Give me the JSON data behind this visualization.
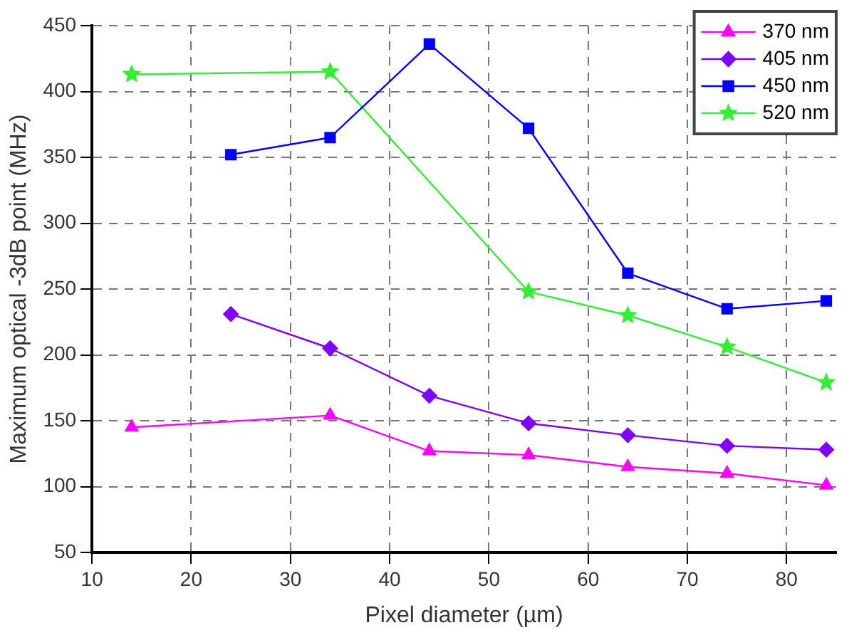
{
  "chart_data": {
    "type": "line",
    "xlabel": "Pixel diameter (µm)",
    "ylabel": "Maximum optical -3dB point (MHz)",
    "xlim": [
      10,
      85
    ],
    "xticks": [
      10,
      20,
      30,
      40,
      50,
      60,
      70,
      80
    ],
    "ylim": [
      50,
      450
    ],
    "yticks": [
      50,
      100,
      150,
      200,
      250,
      300,
      350,
      400,
      450
    ],
    "grid": true,
    "legend": "top right",
    "line_style": "solid",
    "series": [
      {
        "name": "370 nm",
        "color": "#ff00ff",
        "marker": "triangle",
        "x": [
          14,
          34,
          44,
          54,
          64,
          74,
          84
        ],
        "values": [
          145,
          154,
          127,
          124,
          115,
          110,
          101
        ]
      },
      {
        "name": "405 nm",
        "color": "#7f00ff",
        "marker": "diamond",
        "x": [
          24,
          34,
          44,
          54,
          64,
          74,
          84
        ],
        "values": [
          231,
          205,
          169,
          148,
          139,
          131,
          128
        ]
      },
      {
        "name": "450 nm",
        "color": "#0000ff",
        "marker": "square",
        "x": [
          24,
          34,
          44,
          54,
          64,
          74,
          84
        ],
        "values": [
          352,
          365,
          436,
          372,
          262,
          235,
          241
        ]
      },
      {
        "name": "520 nm",
        "color": "#33ee33",
        "marker": "star",
        "x": [
          14,
          34,
          54,
          64,
          74,
          84
        ],
        "values": [
          413,
          415,
          248,
          230,
          206,
          179
        ]
      }
    ]
  }
}
